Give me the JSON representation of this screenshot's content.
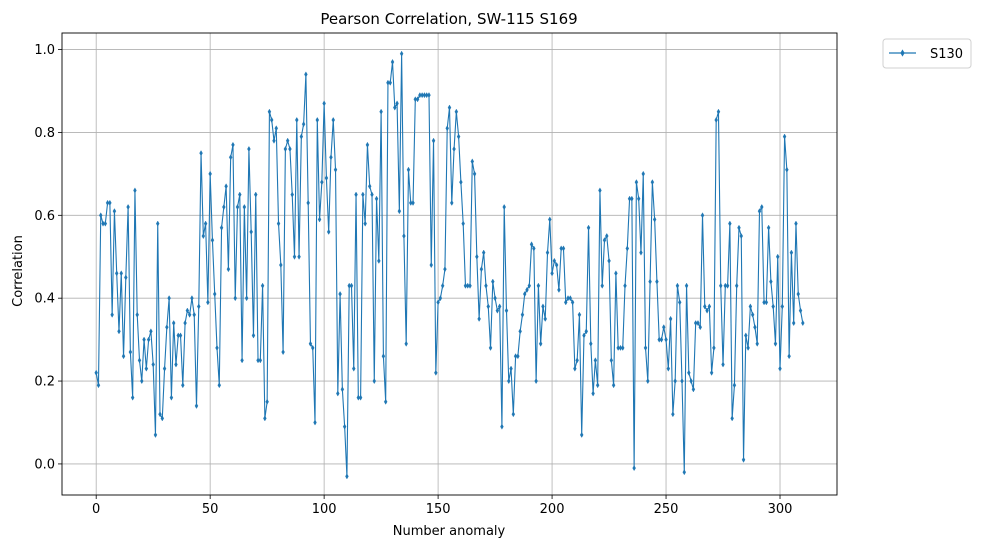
{
  "chart_data": {
    "type": "line",
    "title": "Pearson Correlation, SW-115  S169",
    "xlabel": "Number anomaly",
    "ylabel": "Correlation",
    "xlim": [
      -15,
      325
    ],
    "ylim": [
      -0.075,
      1.04
    ],
    "xticks": [
      0,
      50,
      100,
      150,
      200,
      250,
      300
    ],
    "yticks": [
      0.0,
      0.2,
      0.4,
      0.6,
      0.8,
      1.0
    ],
    "xtick_labels": [
      "0",
      "50",
      "100",
      "150",
      "200",
      "250",
      "300"
    ],
    "ytick_labels": [
      "0.0",
      "0.2",
      "0.4",
      "0.6",
      "0.8",
      "1.0"
    ],
    "grid": true,
    "legend_position": "upper-right-outside",
    "color": "#1f77b4",
    "series": [
      {
        "name": "S130",
        "marker": "thin-diamond",
        "x": [
          0,
          1,
          2,
          3,
          4,
          5,
          6,
          7,
          8,
          9,
          10,
          11,
          12,
          13,
          14,
          15,
          16,
          17,
          18,
          19,
          20,
          21,
          22,
          23,
          24,
          25,
          26,
          27,
          28,
          29,
          30,
          31,
          32,
          33,
          34,
          35,
          36,
          37,
          38,
          39,
          40,
          41,
          42,
          43,
          44,
          45,
          46,
          47,
          48,
          49,
          50,
          51,
          52,
          53,
          54,
          55,
          56,
          57,
          58,
          59,
          60,
          61,
          62,
          63,
          64,
          65,
          66,
          67,
          68,
          69,
          70,
          71,
          72,
          73,
          74,
          75,
          76,
          77,
          78,
          79,
          80,
          81,
          82,
          83,
          84,
          85,
          86,
          87,
          88,
          89,
          90,
          91,
          92,
          93,
          94,
          95,
          96,
          97,
          98,
          99,
          100,
          101,
          102,
          103,
          104,
          105,
          106,
          107,
          108,
          109,
          110,
          111,
          112,
          113,
          114,
          115,
          116,
          117,
          118,
          119,
          120,
          121,
          122,
          123,
          124,
          125,
          126,
          127,
          128,
          129,
          130,
          131,
          132,
          133,
          134,
          135,
          136,
          137,
          138,
          139,
          140,
          141,
          142,
          143,
          144,
          145,
          146,
          147,
          148,
          149,
          150,
          151,
          152,
          153,
          154,
          155,
          156,
          157,
          158,
          159,
          160,
          161,
          162,
          163,
          164,
          165,
          166,
          167,
          168,
          169,
          170,
          171,
          172,
          173,
          174,
          175,
          176,
          177,
          178,
          179,
          180,
          181,
          182,
          183,
          184,
          185,
          186,
          187,
          188,
          189,
          190,
          191,
          192,
          193,
          194,
          195,
          196,
          197,
          198,
          199,
          200,
          201,
          202,
          203,
          204,
          205,
          206,
          207,
          208,
          209,
          210,
          211,
          212,
          213,
          214,
          215,
          216,
          217,
          218,
          219,
          220,
          221,
          222,
          223,
          224,
          225,
          226,
          227,
          228,
          229,
          230,
          231,
          232,
          233,
          234,
          235,
          236,
          237,
          238,
          239,
          240,
          241,
          242,
          243,
          244,
          245,
          246,
          247,
          248,
          249,
          250,
          251,
          252,
          253,
          254,
          255,
          256,
          257,
          258,
          259,
          260,
          261,
          262,
          263,
          264,
          265,
          266,
          267,
          268,
          269,
          270,
          271,
          272,
          273,
          274,
          275,
          276,
          277,
          278,
          279,
          280,
          281,
          282,
          283,
          284,
          285,
          286,
          287,
          288,
          289,
          290,
          291,
          292,
          293,
          294,
          295,
          296,
          297,
          298,
          299,
          300,
          301,
          302,
          303,
          304,
          305,
          306,
          307,
          308,
          309,
          310
        ],
        "y": [
          0.22,
          0.19,
          0.6,
          0.58,
          0.58,
          0.63,
          0.63,
          0.36,
          0.61,
          0.46,
          0.32,
          0.46,
          0.26,
          0.45,
          0.62,
          0.27,
          0.16,
          0.66,
          0.36,
          0.25,
          0.2,
          0.3,
          0.23,
          0.3,
          0.32,
          0.24,
          0.07,
          0.58,
          0.12,
          0.11,
          0.23,
          0.33,
          0.4,
          0.16,
          0.34,
          0.24,
          0.31,
          0.31,
          0.19,
          0.34,
          0.37,
          0.36,
          0.4,
          0.36,
          0.14,
          0.38,
          0.75,
          0.55,
          0.58,
          0.39,
          0.7,
          0.54,
          0.41,
          0.28,
          0.19,
          0.57,
          0.62,
          0.67,
          0.47,
          0.74,
          0.77,
          0.4,
          0.62,
          0.65,
          0.25,
          0.62,
          0.4,
          0.76,
          0.56,
          0.31,
          0.65,
          0.25,
          0.25,
          0.43,
          0.11,
          0.15,
          0.85,
          0.83,
          0.78,
          0.81,
          0.58,
          0.48,
          0.27,
          0.76,
          0.78,
          0.76,
          0.65,
          0.5,
          0.83,
          0.5,
          0.79,
          0.82,
          0.94,
          0.63,
          0.29,
          0.28,
          0.1,
          0.83,
          0.59,
          0.68,
          0.87,
          0.69,
          0.56,
          0.74,
          0.83,
          0.71,
          0.17,
          0.41,
          0.18,
          0.09,
          -0.03,
          0.43,
          0.43,
          0.23,
          0.65,
          0.16,
          0.16,
          0.65,
          0.58,
          0.77,
          0.67,
          0.65,
          0.2,
          0.64,
          0.49,
          0.85,
          0.26,
          0.15,
          0.92,
          0.92,
          0.97,
          0.86,
          0.87,
          0.61,
          0.99,
          0.55,
          0.29,
          0.71,
          0.63,
          0.63,
          0.88,
          0.88,
          0.89,
          0.89,
          0.89,
          0.89,
          0.89,
          0.48,
          0.78,
          0.22,
          0.39,
          0.4,
          0.43,
          0.47,
          0.81,
          0.86,
          0.63,
          0.76,
          0.85,
          0.79,
          0.68,
          0.58,
          0.43,
          0.43,
          0.43,
          0.73,
          0.7,
          0.5,
          0.35,
          0.47,
          0.51,
          0.43,
          0.38,
          0.28,
          0.44,
          0.4,
          0.37,
          0.38,
          0.09,
          0.62,
          0.37,
          0.2,
          0.23,
          0.12,
          0.26,
          0.26,
          0.32,
          0.36,
          0.41,
          0.42,
          0.43,
          0.53,
          0.52,
          0.2,
          0.43,
          0.29,
          0.38,
          0.35,
          0.51,
          0.59,
          0.46,
          0.49,
          0.48,
          0.42,
          0.52,
          0.52,
          0.39,
          0.4,
          0.4,
          0.39,
          0.23,
          0.25,
          0.36,
          0.07,
          0.31,
          0.32,
          0.57,
          0.29,
          0.17,
          0.25,
          0.19,
          0.66,
          0.43,
          0.54,
          0.55,
          0.49,
          0.25,
          0.19,
          0.46,
          0.28,
          0.28,
          0.28,
          0.43,
          0.52,
          0.64,
          0.64,
          -0.01,
          0.68,
          0.64,
          0.51,
          0.7,
          0.28,
          0.2,
          0.44,
          0.68,
          0.59,
          0.44,
          0.3,
          0.3,
          0.33,
          0.3,
          0.23,
          0.35,
          0.12,
          0.2,
          0.43,
          0.39,
          0.2,
          -0.02,
          0.43,
          0.22,
          0.2,
          0.18,
          0.34,
          0.34,
          0.33,
          0.6,
          0.38,
          0.37,
          0.38,
          0.22,
          0.28,
          0.83,
          0.85,
          0.43,
          0.24,
          0.43,
          0.43,
          0.58,
          0.11,
          0.19,
          0.43,
          0.57,
          0.55,
          0.01,
          0.31,
          0.28,
          0.38,
          0.36,
          0.33,
          0.29,
          0.61,
          0.62,
          0.39,
          0.39,
          0.57,
          0.44,
          0.38,
          0.29,
          0.5,
          0.23,
          0.38,
          0.79,
          0.71,
          0.26,
          0.51,
          0.34,
          0.58,
          0.41,
          0.37,
          0.34
        ]
      }
    ]
  }
}
